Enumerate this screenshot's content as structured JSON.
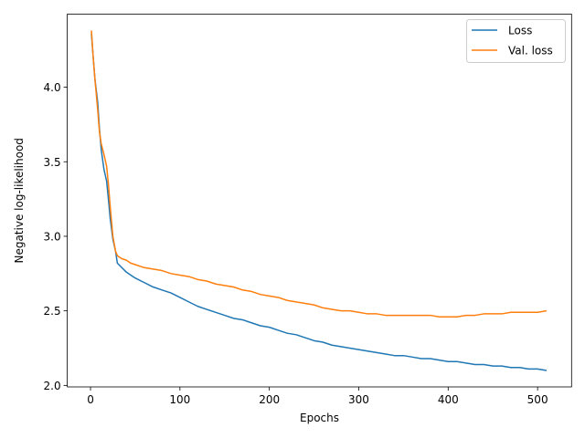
{
  "chart_data": {
    "type": "line",
    "title": "",
    "xlabel": "Epochs",
    "ylabel": "Negative log-likelihood",
    "xlim": [
      -26,
      538
    ],
    "ylim": [
      1.99,
      4.49
    ],
    "xticks": [
      0,
      100,
      200,
      300,
      400,
      500
    ],
    "yticks": [
      2.0,
      2.5,
      3.0,
      3.5,
      4.0
    ],
    "grid": false,
    "legend_position": "top-right",
    "series": [
      {
        "name": "Loss",
        "color": "#1f77b4",
        "points": [
          [
            1,
            4.36
          ],
          [
            3,
            4.2
          ],
          [
            5,
            4.05
          ],
          [
            8,
            3.9
          ],
          [
            10,
            3.72
          ],
          [
            12,
            3.58
          ],
          [
            15,
            3.45
          ],
          [
            18,
            3.37
          ],
          [
            20,
            3.25
          ],
          [
            22,
            3.12
          ],
          [
            25,
            2.98
          ],
          [
            28,
            2.9
          ],
          [
            30,
            2.82
          ],
          [
            35,
            2.79
          ],
          [
            40,
            2.76
          ],
          [
            45,
            2.74
          ],
          [
            50,
            2.72
          ],
          [
            60,
            2.69
          ],
          [
            70,
            2.66
          ],
          [
            80,
            2.64
          ],
          [
            90,
            2.62
          ],
          [
            100,
            2.59
          ],
          [
            110,
            2.56
          ],
          [
            120,
            2.53
          ],
          [
            130,
            2.51
          ],
          [
            140,
            2.49
          ],
          [
            150,
            2.47
          ],
          [
            160,
            2.45
          ],
          [
            170,
            2.44
          ],
          [
            180,
            2.42
          ],
          [
            190,
            2.4
          ],
          [
            200,
            2.39
          ],
          [
            210,
            2.37
          ],
          [
            220,
            2.35
          ],
          [
            230,
            2.34
          ],
          [
            240,
            2.32
          ],
          [
            250,
            2.3
          ],
          [
            260,
            2.29
          ],
          [
            270,
            2.27
          ],
          [
            280,
            2.26
          ],
          [
            290,
            2.25
          ],
          [
            300,
            2.24
          ],
          [
            310,
            2.23
          ],
          [
            320,
            2.22
          ],
          [
            330,
            2.21
          ],
          [
            340,
            2.2
          ],
          [
            350,
            2.2
          ],
          [
            360,
            2.19
          ],
          [
            370,
            2.18
          ],
          [
            380,
            2.18
          ],
          [
            390,
            2.17
          ],
          [
            400,
            2.16
          ],
          [
            410,
            2.16
          ],
          [
            420,
            2.15
          ],
          [
            430,
            2.14
          ],
          [
            440,
            2.14
          ],
          [
            450,
            2.13
          ],
          [
            460,
            2.13
          ],
          [
            470,
            2.12
          ],
          [
            480,
            2.12
          ],
          [
            490,
            2.11
          ],
          [
            500,
            2.11
          ],
          [
            510,
            2.1
          ]
        ]
      },
      {
        "name": "Val. loss",
        "color": "#ff7f0e",
        "points": [
          [
            1,
            4.38
          ],
          [
            3,
            4.2
          ],
          [
            5,
            4.05
          ],
          [
            8,
            3.85
          ],
          [
            10,
            3.7
          ],
          [
            12,
            3.62
          ],
          [
            15,
            3.55
          ],
          [
            18,
            3.47
          ],
          [
            20,
            3.35
          ],
          [
            22,
            3.2
          ],
          [
            25,
            3.0
          ],
          [
            28,
            2.9
          ],
          [
            30,
            2.87
          ],
          [
            35,
            2.85
          ],
          [
            40,
            2.84
          ],
          [
            45,
            2.82
          ],
          [
            50,
            2.81
          ],
          [
            60,
            2.79
          ],
          [
            70,
            2.78
          ],
          [
            80,
            2.77
          ],
          [
            90,
            2.75
          ],
          [
            100,
            2.74
          ],
          [
            110,
            2.73
          ],
          [
            120,
            2.71
          ],
          [
            130,
            2.7
          ],
          [
            140,
            2.68
          ],
          [
            150,
            2.67
          ],
          [
            160,
            2.66
          ],
          [
            170,
            2.64
          ],
          [
            180,
            2.63
          ],
          [
            190,
            2.61
          ],
          [
            200,
            2.6
          ],
          [
            210,
            2.59
          ],
          [
            220,
            2.57
          ],
          [
            230,
            2.56
          ],
          [
            240,
            2.55
          ],
          [
            250,
            2.54
          ],
          [
            260,
            2.52
          ],
          [
            270,
            2.51
          ],
          [
            280,
            2.5
          ],
          [
            290,
            2.5
          ],
          [
            300,
            2.49
          ],
          [
            310,
            2.48
          ],
          [
            320,
            2.48
          ],
          [
            330,
            2.47
          ],
          [
            340,
            2.47
          ],
          [
            350,
            2.47
          ],
          [
            360,
            2.47
          ],
          [
            370,
            2.47
          ],
          [
            380,
            2.47
          ],
          [
            390,
            2.46
          ],
          [
            400,
            2.46
          ],
          [
            410,
            2.46
          ],
          [
            420,
            2.47
          ],
          [
            430,
            2.47
          ],
          [
            440,
            2.48
          ],
          [
            450,
            2.48
          ],
          [
            460,
            2.48
          ],
          [
            470,
            2.49
          ],
          [
            480,
            2.49
          ],
          [
            490,
            2.49
          ],
          [
            500,
            2.49
          ],
          [
            510,
            2.5
          ]
        ]
      }
    ]
  }
}
